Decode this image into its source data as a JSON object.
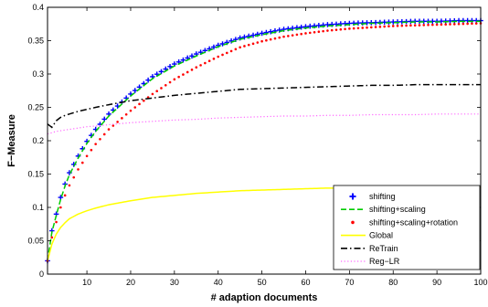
{
  "chart_data": {
    "type": "line",
    "title": "",
    "xlabel": "# adaption documents",
    "ylabel": "F−Measure",
    "xlim": [
      1,
      100
    ],
    "ylim": [
      0,
      0.4
    ],
    "xticks": [
      10,
      20,
      30,
      40,
      50,
      60,
      70,
      80,
      90,
      100
    ],
    "yticks": [
      0,
      0.05,
      0.1,
      0.15,
      0.2,
      0.25,
      0.3,
      0.35,
      0.4
    ],
    "xtick_labels": [
      "10",
      "20",
      "30",
      "40",
      "50",
      "60",
      "70",
      "80",
      "90",
      "100"
    ],
    "ytick_labels": [
      "0",
      "0.05",
      "0.1",
      "0.15",
      "0.2",
      "0.25",
      "0.3",
      "0.35",
      "0.4"
    ],
    "grid": false,
    "legend_position": "bottom-right",
    "x": [
      1,
      2,
      3,
      4,
      5,
      6,
      8,
      10,
      12,
      15,
      20,
      25,
      30,
      35,
      40,
      45,
      50,
      55,
      60,
      65,
      70,
      75,
      80,
      85,
      90,
      95,
      100
    ],
    "series": [
      {
        "name": "shifting",
        "color": "#0000ff",
        "marker": "plus",
        "values": [
          0.02,
          0.065,
          0.09,
          0.115,
          0.135,
          0.152,
          0.177,
          0.199,
          0.217,
          0.24,
          0.27,
          0.296,
          0.315,
          0.33,
          0.343,
          0.354,
          0.361,
          0.367,
          0.371,
          0.374,
          0.376,
          0.377,
          0.378,
          0.379,
          0.379,
          0.38,
          0.38
        ]
      },
      {
        "name": "shifting+scaling",
        "color": "#00cc00",
        "style": "dashed",
        "values": [
          0.02,
          0.063,
          0.088,
          0.112,
          0.132,
          0.149,
          0.174,
          0.196,
          0.214,
          0.237,
          0.267,
          0.293,
          0.312,
          0.327,
          0.341,
          0.352,
          0.359,
          0.365,
          0.369,
          0.372,
          0.374,
          0.376,
          0.377,
          0.378,
          0.378,
          0.379,
          0.379
        ]
      },
      {
        "name": "shifting+scaling+rotation",
        "color": "#ff0000",
        "marker": "dot",
        "values": [
          0.02,
          0.055,
          0.078,
          0.1,
          0.118,
          0.133,
          0.157,
          0.177,
          0.195,
          0.217,
          0.245,
          0.27,
          0.292,
          0.31,
          0.326,
          0.34,
          0.349,
          0.356,
          0.361,
          0.365,
          0.368,
          0.37,
          0.372,
          0.373,
          0.374,
          0.375,
          0.376
        ]
      },
      {
        "name": "Global",
        "color": "#ffff00",
        "style": "solid",
        "values": [
          0.02,
          0.045,
          0.06,
          0.07,
          0.077,
          0.083,
          0.09,
          0.095,
          0.099,
          0.104,
          0.11,
          0.115,
          0.118,
          0.121,
          0.123,
          0.125,
          0.126,
          0.127,
          0.128,
          0.129,
          0.129,
          0.13,
          0.13,
          0.13,
          0.13,
          0.13,
          0.13
        ]
      },
      {
        "name": "ReTrain",
        "color": "#000000",
        "style": "dashdot",
        "values": [
          0.225,
          0.22,
          0.23,
          0.235,
          0.238,
          0.24,
          0.244,
          0.247,
          0.25,
          0.254,
          0.26,
          0.264,
          0.268,
          0.271,
          0.274,
          0.277,
          0.278,
          0.279,
          0.28,
          0.281,
          0.282,
          0.283,
          0.283,
          0.284,
          0.284,
          0.284,
          0.284
        ]
      },
      {
        "name": "Reg−LR",
        "color": "#ff66ff",
        "style": "dotted",
        "values": [
          0.21,
          0.212,
          0.214,
          0.215,
          0.216,
          0.217,
          0.219,
          0.221,
          0.222,
          0.224,
          0.227,
          0.229,
          0.231,
          0.232,
          0.234,
          0.235,
          0.236,
          0.237,
          0.237,
          0.238,
          0.238,
          0.239,
          0.239,
          0.239,
          0.24,
          0.24,
          0.24
        ]
      }
    ]
  }
}
